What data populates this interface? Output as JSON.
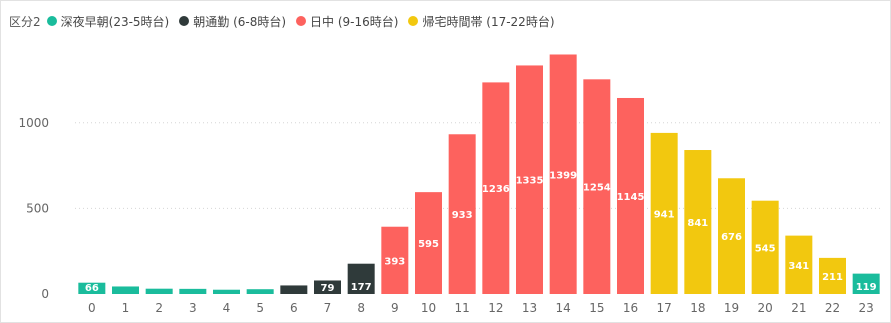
{
  "legend": {
    "title": "区分2",
    "items": [
      {
        "label": "深夜早朝(23-5時台)",
        "color": "#1abc9c"
      },
      {
        "label": "朝通勤 (6-8時台)",
        "color": "#2f3a3a"
      },
      {
        "label": "日中 (9-16時台)",
        "color": "#fd625e"
      },
      {
        "label": "帰宅時間帯 (17-22時台)",
        "color": "#f2c80f"
      }
    ]
  },
  "chart_data": {
    "type": "bar",
    "categories": [
      "0",
      "1",
      "2",
      "3",
      "4",
      "5",
      "6",
      "7",
      "8",
      "9",
      "10",
      "11",
      "12",
      "13",
      "14",
      "15",
      "16",
      "17",
      "18",
      "19",
      "20",
      "21",
      "22",
      "23"
    ],
    "values": [
      66,
      44,
      31,
      30,
      25,
      28,
      50,
      79,
      177,
      393,
      595,
      933,
      1236,
      1335,
      1399,
      1254,
      1145,
      941,
      841,
      676,
      545,
      341,
      211,
      119
    ],
    "labels": [
      "66",
      "",
      "",
      "",
      "",
      "",
      "",
      "79",
      "177",
      "393",
      "595",
      "933",
      "1236",
      "1335",
      "1399",
      "1254",
      "1145",
      "941",
      "841",
      "676",
      "545",
      "341",
      "211",
      "119"
    ],
    "groups": [
      0,
      0,
      0,
      0,
      0,
      0,
      1,
      1,
      1,
      2,
      2,
      2,
      2,
      2,
      2,
      2,
      2,
      3,
      3,
      3,
      3,
      3,
      3,
      0
    ],
    "yticks": [
      0,
      500,
      1000
    ],
    "ylim": [
      0,
      1450
    ],
    "grid": true,
    "legend_position": "top-left",
    "title": "",
    "xlabel": "",
    "ylabel": ""
  }
}
